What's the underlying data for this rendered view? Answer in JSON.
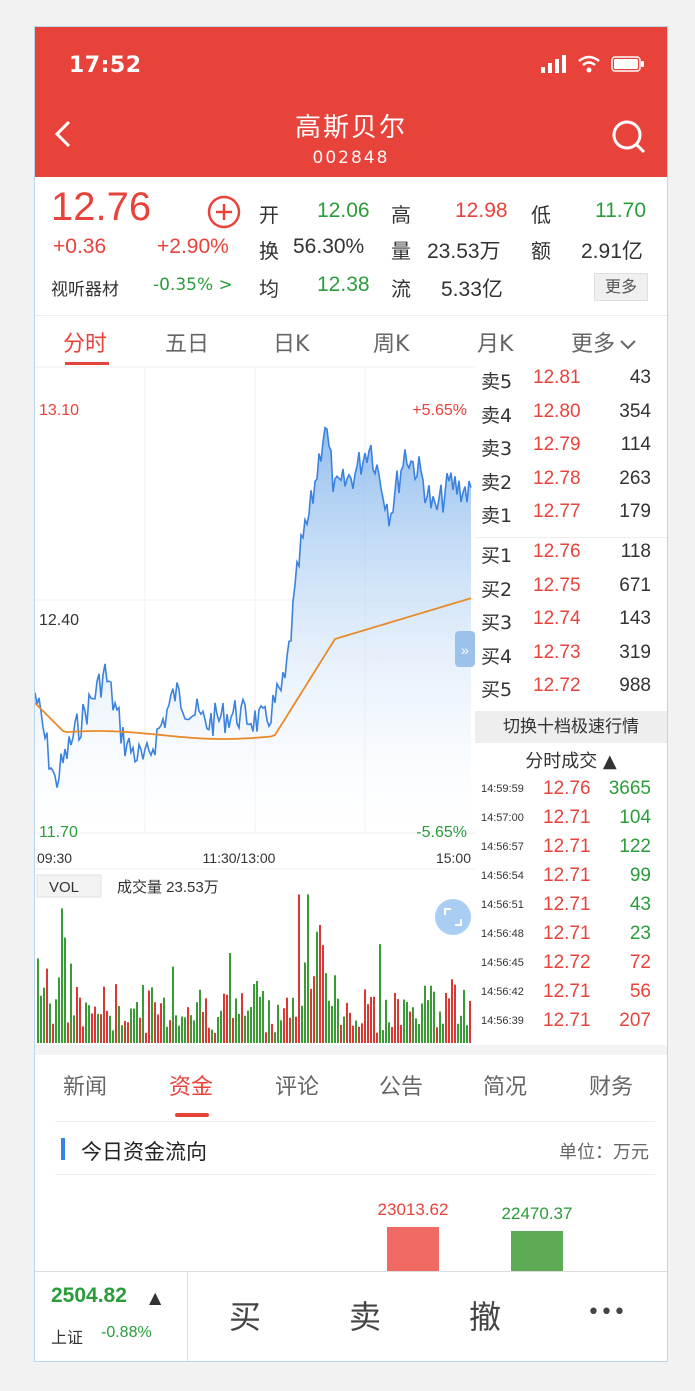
{
  "status": {
    "time": "17:52"
  },
  "header": {
    "name": "高斯贝尔",
    "code": "002848"
  },
  "quote": {
    "price": "12.76",
    "change": "+0.36",
    "change_pct": "+2.90%",
    "industry": "视听器材",
    "industry_chg": "-0.35% >",
    "labels": {
      "open": "开",
      "high": "高",
      "low": "低",
      "turnover": "换",
      "volume": "量",
      "amount": "额",
      "avg": "均",
      "float": "流"
    },
    "open": "12.06",
    "high": "12.98",
    "low": "11.70",
    "turnover": "56.30%",
    "volume": "23.53万",
    "amount": "2.91亿",
    "avg": "12.38",
    "float": "5.33亿",
    "more": "更多"
  },
  "chart_tabs": [
    "分时",
    "五日",
    "日K",
    "周K",
    "月K",
    "更多"
  ],
  "chart_data": {
    "type": "line",
    "ylim": [
      11.7,
      13.1
    ],
    "y_ticks": [
      "13.10",
      "12.40",
      "11.70"
    ],
    "pct_top": "+5.65%",
    "pct_bottom": "-5.65%",
    "x_ticks": [
      "09:30",
      "11:30/13:00",
      "15:00"
    ],
    "series": [],
    "vol_label": "VOL",
    "vol_text": "成交量 23.53万"
  },
  "order_book": {
    "asks": [
      {
        "label": "卖5",
        "price": "12.81",
        "vol": "43"
      },
      {
        "label": "卖4",
        "price": "12.80",
        "vol": "354"
      },
      {
        "label": "卖3",
        "price": "12.79",
        "vol": "114"
      },
      {
        "label": "卖2",
        "price": "12.78",
        "vol": "263"
      },
      {
        "label": "卖1",
        "price": "12.77",
        "vol": "179"
      }
    ],
    "bids": [
      {
        "label": "买1",
        "price": "12.76",
        "vol": "118"
      },
      {
        "label": "买2",
        "price": "12.75",
        "vol": "671"
      },
      {
        "label": "买3",
        "price": "12.74",
        "vol": "143"
      },
      {
        "label": "买4",
        "price": "12.73",
        "vol": "319"
      },
      {
        "label": "买5",
        "price": "12.72",
        "vol": "988"
      }
    ],
    "switch_label": "切换十档极速行情",
    "ticks_title": "分时成交 ▲",
    "ticks": [
      {
        "time": "14:59:59",
        "price": "12.76",
        "vol": "3665",
        "dir": "buy"
      },
      {
        "time": "14:57:00",
        "price": "12.71",
        "vol": "104",
        "dir": "buy"
      },
      {
        "time": "14:56:57",
        "price": "12.71",
        "vol": "122",
        "dir": "buy"
      },
      {
        "time": "14:56:54",
        "price": "12.71",
        "vol": "99",
        "dir": "buy"
      },
      {
        "time": "14:56:51",
        "price": "12.71",
        "vol": "43",
        "dir": "buy"
      },
      {
        "time": "14:56:48",
        "price": "12.71",
        "vol": "23",
        "dir": "buy"
      },
      {
        "time": "14:56:45",
        "price": "12.72",
        "vol": "72",
        "dir": "sell"
      },
      {
        "time": "14:56:42",
        "price": "12.71",
        "vol": "56",
        "dir": "sell"
      },
      {
        "time": "14:56:39",
        "price": "12.71",
        "vol": "207",
        "dir": "sell"
      }
    ]
  },
  "news_tabs": [
    "新闻",
    "资金",
    "评论",
    "公告",
    "简况",
    "财务"
  ],
  "fund_flow": {
    "title": "今日资金流向",
    "unit": "单位：万元",
    "inflow": "23013.62",
    "outflow": "22470.37"
  },
  "bottom": {
    "index_value": "2504.82",
    "index_arrow": "▲",
    "index_name": "上证",
    "index_chg": "-0.88%",
    "buy": "买",
    "sell": "卖",
    "cancel": "撤",
    "more": "•••"
  },
  "colors": {
    "red": "#e8433b",
    "green": "#2a9d3a",
    "blue": "#3b82e0",
    "orange": "#e88a2a"
  }
}
